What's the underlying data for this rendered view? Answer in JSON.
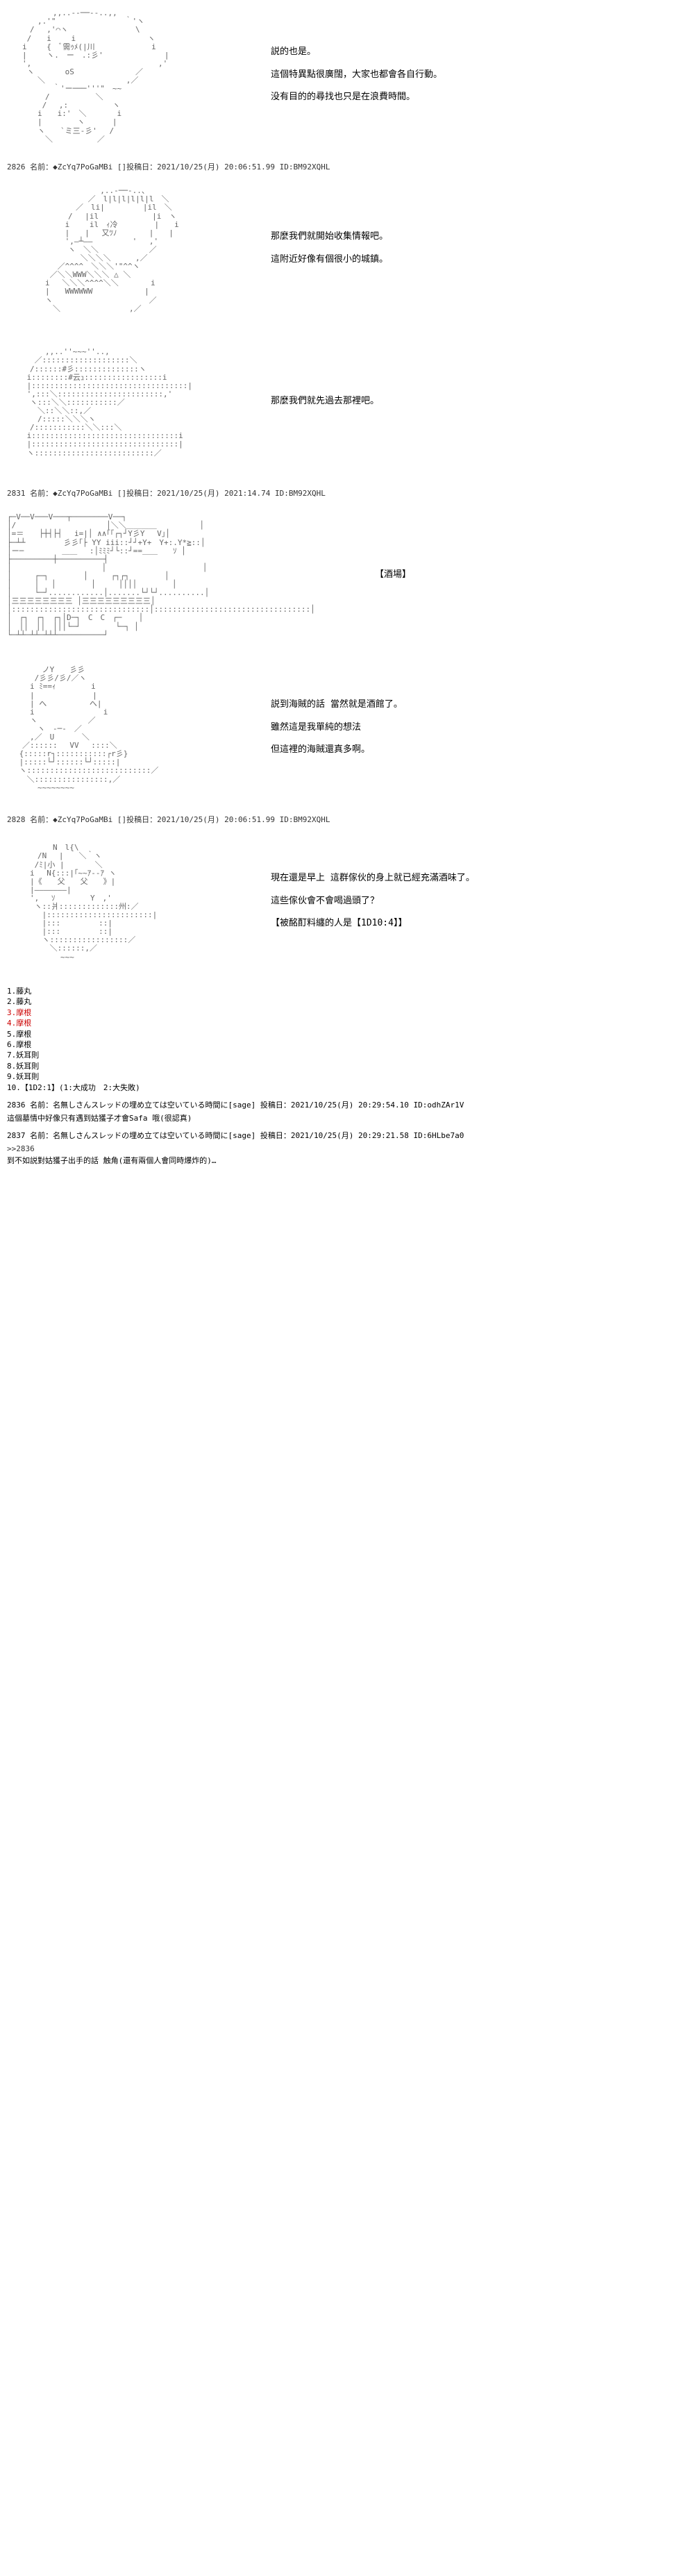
{
  "panels": [
    {
      "art_key": "girl1",
      "dialogue": [
        "説的也是。",
        "這個特異點很廣闊，大家也都會各自行動。",
        "没有目的的尋找也只是在浪費時間。"
      ]
    },
    {
      "header": "2826 名前：◆ZcYq7PoGaMBi []投稿日：2021/10/25(月) 20:06:51.99 ID:BM92XQHL",
      "art_key": "girl2",
      "dialogue": [
        "那麼我們就開始收集情報吧。",
        "這附近好像有個很小的城鎮。"
      ]
    },
    {
      "art_key": "girl3",
      "dialogue": [
        "那麼我們就先過去那裡吧。"
      ]
    },
    {
      "header": "2831 名前：◆ZcYq7PoGaMBi []投稿日：2021/10/25(月) 2021:14.74 ID:BM92XQHL",
      "art_key": "tavern",
      "dialogue": [
        "【酒場】"
      ],
      "art_large": true
    },
    {
      "art_key": "pirate",
      "dialogue": [
        "説到海賊的話 當然就是酒館了。",
        "雖然這是我單純的想法",
        "但這裡的海賊還真多啊。"
      ]
    },
    {
      "header": "2828 名前：◆ZcYq7PoGaMBi []投稿日：2021/10/25(月) 20:06:51.99 ID:BM92XQHL",
      "art_key": "warrior",
      "dialogue": [
        "現在還是早上 這群傢伙的身上就已經充滿酒味了。",
        "這些傢伙會不會喝過頭了？",
        "【被酩酊料纏的人是【1D10:4】】"
      ]
    }
  ],
  "dice": {
    "items": [
      {
        "n": "1",
        "text": "藤丸",
        "hl": false
      },
      {
        "n": "2",
        "text": "藤丸",
        "hl": false
      },
      {
        "n": "3",
        "text": "摩根",
        "hl": true
      },
      {
        "n": "4",
        "text": "摩根",
        "hl": true
      },
      {
        "n": "5",
        "text": "摩根",
        "hl": false
      },
      {
        "n": "6",
        "text": "摩根",
        "hl": false
      },
      {
        "n": "7",
        "text": "妖耳則",
        "hl": false
      },
      {
        "n": "8",
        "text": "妖耳則",
        "hl": false
      },
      {
        "n": "9",
        "text": "妖耳則",
        "hl": false
      },
      {
        "n": "10",
        "text": "【1D2:1】(1:大成功　2:大失敗)",
        "hl": false
      }
    ]
  },
  "comments": [
    {
      "header": "2836 名前：名無しさんスレッドの埋め立ては空いている時間に[sage] 投稿日：2021/10/25(月) 20:29:54.10 ID:odhZAr1V",
      "body": "這個墓情中好像只有遇到姑獲子才會Safa 哦(很認真)"
    },
    {
      "header": "2837 名前：名無しさんスレッドの埋め立ては空いている時間に[sage] 投稿日：2021/10/25(月) 20:29:21.58 ID:6HLbe7a0",
      "ref": ">>2836",
      "body": "到不如説對姑獲子出手的話 触角(還有兩個人會同時爆炸的)…"
    }
  ],
  "ascii": {
    "girl1": "　　　　　　,,..--──--..,,\n　　　　,.'\"　　　　　　　　　｀'ヽ\n　　　/　 ,'⌒ヽ　 　 　 　　　　\\\n　　 /　　i　　 i　　　　 　 　 　 ヽ\n　　i　　 {　ﾞ需ｩﾒ(|川　　 　 　 　 i\n　　|　　 ヽ.　ー　.:彡'　 　 　 　 　 |\n　　',　　　　　　　　 　 　 　 　 　 ,'\n　　 ヽ　　　　oS　 　 　 　 　 ／\n　　　　＼　 　 　 　 　 　 　,／\n　　　　　　｀'ー───'''\"　~~\n　　　　　/　　　　　　＼\n　　　　 /　 ,:　　 　 　 ヽ\n　　　　i　　i:'　＼　　　　i\n　　　　|　　　　 ヽ　　 　|\n　　　　ヽ　　`ミ三-彡'　 /\n　　　　　＼　　 　 　 ／",
    "girl2": "　　　　　　　　　　 　 ,..-──-..、\n　　　　　　　　　　 ／　l|l|l|l|l|l　＼\n　　　　　　　　　／　li|　　　　　|il　＼\n　　　　　　　　/　 |il　　　　　　　|i　ヽ\n　　　　　　　 i　　 il　ｨ冷　 　 　 |　　i\n　　　　　　　 |　　| 　又ﾂﾉ　 　 　|　　|\n　　　　　　　 ',―┴――　　　 　 '　 ,'\n　　　　　　　　ヽ　＼＼　　　　　　 ／\n　 　 　 　 　 　 ＼＼＼＼　 　 ,／\n　　　　　　 ／^^^^　＼＼＼'\"^^ヽ\n　　　　　 ／＼＼WWW＼＼＼ △ ＼\n　　　　　i　 ＼＼＼^^^^＼＼　 　　 i\n　　　　　|　　WWWWWW　　 　 　　 |\n　　　　　ヽ　　　　　　　　　　　　 ／\n　　　　　　＼　　　　　　　　　,／",
    "girl3": "　　　　　,,..''~~~''..,\n　　　 ／:::::::::::::::::::＼\n　　　/::::::#彡::::::::::::::ヽ\n　　 i::::::::#云ｭ:::::::::::::::::i\n　　 |::::::::::::::::::::::::::::::::::|\n　　 ',:::＼:::::::::::::::::::::::,'\n　　　ヽ:::＼＼:::::::::::／\n　　　　＼::＼＼::,／\n　　　　/:::::＼＼＼ヽ\n　　　/:::::::::::＼＼:::＼\n　　 i::::::::::::::::::::::::::::::::i\n　　 |::::::::::::::::::::::::::::::::|\n　　 ヽ::::::::::::::::::::::::::／",
    "tavern": "┌─V──V───V───┬────────V──┐\n│/　　　　　　　　 　 　 │＼＼＿＿＿＿　　　　　 │\n│=＝　　├┼┤├┤　 i=|│ ∧∧｢｢┌┐┘Y彡Y　 V｣│\n├─┴┴　　　　　彡彡｢├ YY iii::┘┘+Y+　Y+:.Y*≧::│\n│ー─　　　　　＿＿　 :│ﾐﾐﾐ┘└::┘==＿＿　　ｿ │\n├─────────┼──────────┤\n│　　　　　　　 　 　 　│　　　　　　　　　　　　 │\n│　　　┌─┐　　　　 │　　　┌┐┌┐　　　　 │\n│　　　│　 │　　　　 │　　　││││　　　　 │\n│　　　└─┘............│.......└┘└┘..........│\n│三三三三三三三三 │三三三三三三三三三│\n│::::::::::::::::::::::::::::::│::::::::::::::::::::::::::::::::::│\n│　┌┐　┌┐　┌┐│D─┐　C　C　┌─ 　 │\n│　││　││　│││└─┘　　　　 └─┐ │\n└─┴┴─┴┴─┴┴┴──────────┘",
    "pirate": "　　　　 ノY　　彡彡\n　　　 /彡彡/彡/／ヽ\n　　　i ﾐ==ｨ　　　　 i\n　　　|　　　　　　　 |\n　　　| へ　　　　　 へ|\n　　　i　　 　 　 　 　 i\n　　　ヽ　　　　　　 ／\n　　　　ヽ　-─-　／\n　　　,／　U　　　 ＼\n　　／::::::　 VV　 ::::＼\n　 {:::::r┐:::::::::::┌r彡}\n　 |:::::└┘::::::└┘:::::|\n　 ヽ:::::::::::::::::::::::::::／\n　　 ＼::::::::::::::::,／\n　　　　~~~~~~~~",
    "warrior": "　　　　　　N　l{\\\n　　　　/N　 |　　＼｀ヽ\n　　　 /ﾐ|小 |　　　　＼\n　　　i　 N{:::|｢~~ｱ--ｱ ヽ\n　　　|《　　父　　父　　》|\n　　　|―――――――|\n　　　',　 ｿ　　　　 Y　,'\n　　　 ヽ::爿:::::::::::::州:／\n　　　　 |:::::::::::::::::::::::|\n　　　　 |:::　　　　　::|\n　　　　 |:::　　　　　::|\n　　　　 ヽ:::::::::::::::::／\n　　　　　 ＼::::::,／\n　　　　　　　~~~"
  }
}
